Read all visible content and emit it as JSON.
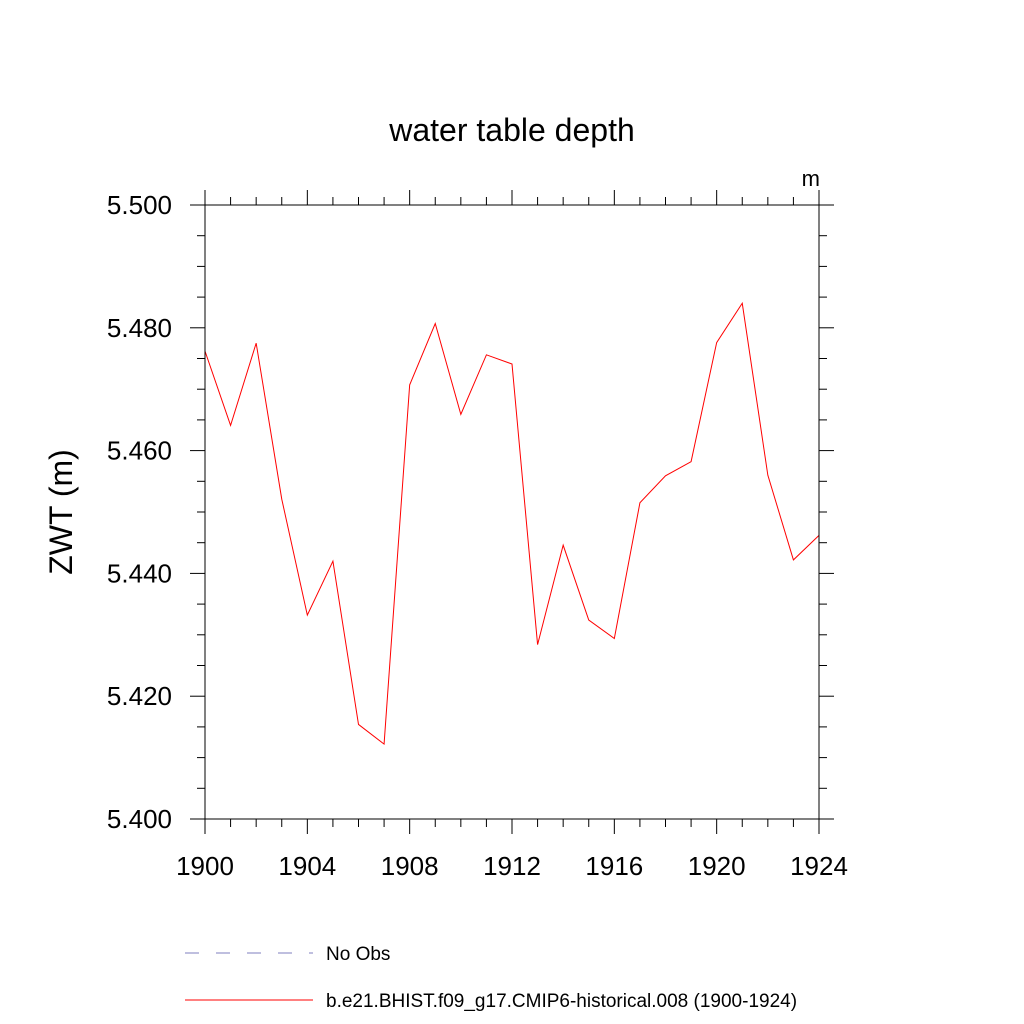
{
  "chart_data": {
    "type": "line",
    "title": "water table depth",
    "units": "m",
    "xlabel": "",
    "ylabel": "ZWT  (m)",
    "xlim": [
      1900,
      1924
    ],
    "ylim": [
      5.4,
      5.5
    ],
    "xticks": [
      1900,
      1904,
      1908,
      1912,
      1916,
      1920,
      1924
    ],
    "xtick_labels": [
      "1900",
      "1904",
      "1908",
      "1912",
      "1916",
      "1920",
      "1924"
    ],
    "yticks": [
      5.4,
      5.42,
      5.44,
      5.46,
      5.48,
      5.5
    ],
    "ytick_labels": [
      "5.400",
      "5.420",
      "5.440",
      "5.460",
      "5.480",
      "5.500"
    ],
    "grid": false,
    "legend_position": "bottom",
    "series": [
      {
        "name": "b.e21.BHIST.f09_g17.CMIP6-historical.008 (1900-1924)",
        "color": "#ff0000",
        "style": "solid",
        "x": [
          1900,
          1901,
          1902,
          1903,
          1904,
          1905,
          1906,
          1907,
          1908,
          1909,
          1910,
          1911,
          1912,
          1913,
          1914,
          1915,
          1916,
          1917,
          1918,
          1919,
          1920,
          1921,
          1922,
          1923,
          1924
        ],
        "values": [
          5.4762,
          5.4641,
          5.4775,
          5.4521,
          5.4332,
          5.442,
          5.4154,
          5.4122,
          5.4707,
          5.4807,
          5.4659,
          5.4756,
          5.4741,
          5.4284,
          5.4446,
          5.4324,
          5.4294,
          5.4515,
          5.4559,
          5.4582,
          5.4776,
          5.484,
          5.456,
          5.4422,
          5.4462
        ]
      }
    ],
    "legend": [
      {
        "label": "No Obs",
        "color": "#7f7fbf",
        "style": "dashed"
      },
      {
        "label": "b.e21.BHIST.f09_g17.CMIP6-historical.008 (1900-1924)",
        "color": "#ff0000",
        "style": "solid"
      }
    ]
  }
}
